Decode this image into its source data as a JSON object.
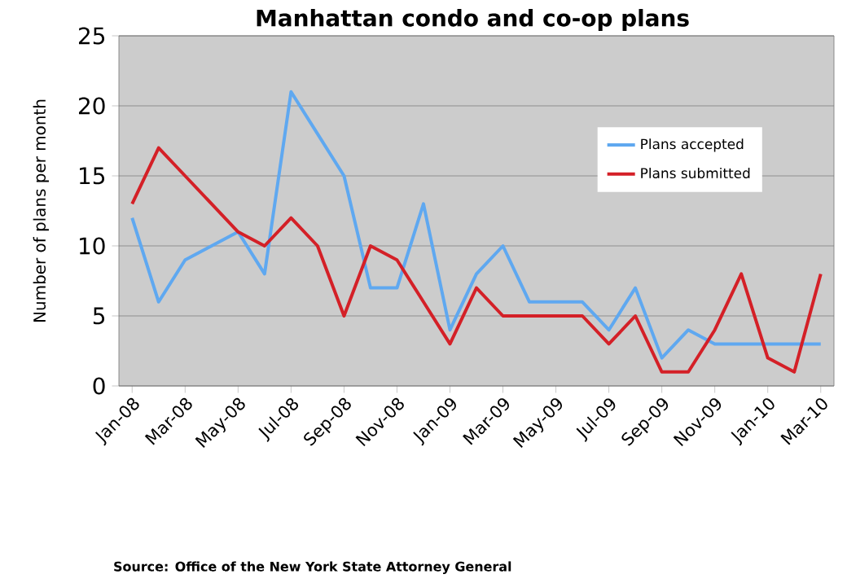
{
  "chart_data": {
    "type": "line",
    "title": "Manhattan condo and co-op plans",
    "ylabel": "Number of plans per month",
    "categories": [
      "Jan-08",
      null,
      "Mar-08",
      null,
      "May-08",
      null,
      "Jul-08",
      null,
      "Sep-08",
      null,
      "Nov-08",
      null,
      "Jan-09",
      null,
      "Mar-09",
      null,
      "May-09",
      null,
      "Jul-09",
      null,
      "Sep-09",
      null,
      "Nov-09",
      null,
      "Jan-10",
      null,
      "Mar-10"
    ],
    "series": [
      {
        "name": "Plans accepted",
        "color": "#5fa8f0",
        "values": [
          12,
          6,
          9,
          10,
          11,
          8,
          21,
          18,
          15,
          7,
          7,
          13,
          4,
          8,
          10,
          6,
          6,
          6,
          4,
          7,
          2,
          4,
          3,
          3,
          3,
          3,
          3
        ]
      },
      {
        "name": "Plans submitted",
        "color": "#d42027",
        "values": [
          13,
          17,
          15,
          13,
          11,
          10,
          12,
          10,
          5,
          10,
          9,
          6,
          3,
          7,
          5,
          5,
          5,
          5,
          3,
          5,
          1,
          1,
          4,
          8,
          2,
          1,
          8
        ]
      }
    ],
    "ylim": [
      0,
      25
    ],
    "yticks": [
      0,
      5,
      10,
      15,
      20,
      25
    ],
    "grid": "y",
    "legend": "top right",
    "marker": "none",
    "line_style": "solid",
    "annotations": [
      "Source: Office of the New York State Attorney General"
    ]
  }
}
